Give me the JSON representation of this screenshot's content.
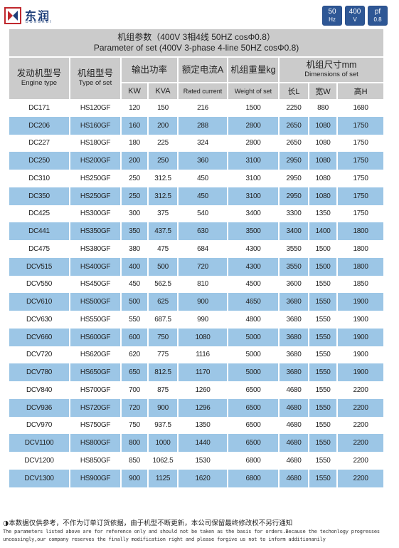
{
  "brand": {
    "name": "东润",
    "subtitle": "DONGRUI"
  },
  "badges": [
    {
      "top": "50",
      "bottom": "Hz"
    },
    {
      "top": "400",
      "bottom": "V"
    },
    {
      "top": "pf",
      "bottom": "0.8"
    }
  ],
  "table": {
    "title_cn": "机组参数（400V 3相4线 50HZ cosΦ0.8）",
    "title_en": "Parameter of set (400V 3-phase 4-line 50HZ cosΦ0.8)",
    "headers": {
      "engine_cn": "发动机型号",
      "engine_en": "Engine type",
      "set_cn": "机组型号",
      "set_en": "Type of set",
      "power": "输出功率",
      "kw": "KW",
      "kva": "KVA",
      "current_cn": "额定电流A",
      "current_en": "Rated current",
      "weight_cn": "机组重量kg",
      "weight_en": "Weight of set",
      "dim_cn": "机组尺寸mm",
      "dim_en": "Dimensions of set",
      "l": "长L",
      "w": "宽W",
      "h": "高H"
    },
    "rows": [
      [
        "DC171",
        "HS120GF",
        "120",
        "150",
        "216",
        "1500",
        "2250",
        "880",
        "1680"
      ],
      [
        "DC206",
        "HS160GF",
        "160",
        "200",
        "288",
        "2800",
        "2650",
        "1080",
        "1750"
      ],
      [
        "DC227",
        "HS180GF",
        "180",
        "225",
        "324",
        "2800",
        "2650",
        "1080",
        "1750"
      ],
      [
        "DC250",
        "HS200GF",
        "200",
        "250",
        "360",
        "3100",
        "2950",
        "1080",
        "1750"
      ],
      [
        "DC310",
        "HS250GF",
        "250",
        "312.5",
        "450",
        "3100",
        "2950",
        "1080",
        "1750"
      ],
      [
        "DC350",
        "HS250GF",
        "250",
        "312.5",
        "450",
        "3100",
        "2950",
        "1080",
        "1750"
      ],
      [
        "DC425",
        "HS300GF",
        "300",
        "375",
        "540",
        "3400",
        "3300",
        "1350",
        "1750"
      ],
      [
        "DC441",
        "HS350GF",
        "350",
        "437.5",
        "630",
        "3500",
        "3400",
        "1400",
        "1800"
      ],
      [
        "DC475",
        "HS380GF",
        "380",
        "475",
        "684",
        "4300",
        "3550",
        "1500",
        "1800"
      ],
      [
        "DCV515",
        "HS400GF",
        "400",
        "500",
        "720",
        "4300",
        "3550",
        "1500",
        "1800"
      ],
      [
        "DCV550",
        "HS450GF",
        "450",
        "562.5",
        "810",
        "4500",
        "3600",
        "1550",
        "1850"
      ],
      [
        "DCV610",
        "HS500GF",
        "500",
        "625",
        "900",
        "4650",
        "3680",
        "1550",
        "1900"
      ],
      [
        "DCV630",
        "HS550GF",
        "550",
        "687.5",
        "990",
        "4800",
        "3680",
        "1550",
        "1900"
      ],
      [
        "DCV660",
        "HS600GF",
        "600",
        "750",
        "1080",
        "5000",
        "3680",
        "1550",
        "1900"
      ],
      [
        "DCV720",
        "HS620GF",
        "620",
        "775",
        "1116",
        "5000",
        "3680",
        "1550",
        "1900"
      ],
      [
        "DCV780",
        "HS650GF",
        "650",
        "812.5",
        "1170",
        "5000",
        "3680",
        "1550",
        "1900"
      ],
      [
        "DCV840",
        "HS700GF",
        "700",
        "875",
        "1260",
        "6500",
        "4680",
        "1550",
        "2200"
      ],
      [
        "DCV936",
        "HS720GF",
        "720",
        "900",
        "1296",
        "6500",
        "4680",
        "1550",
        "2200"
      ],
      [
        "DCV970",
        "HS750GF",
        "750",
        "937.5",
        "1350",
        "6500",
        "4680",
        "1550",
        "2200"
      ],
      [
        "DCV1100",
        "HS800GF",
        "800",
        "1000",
        "1440",
        "6500",
        "4680",
        "1550",
        "2200"
      ],
      [
        "DCV1200",
        "HS850GF",
        "850",
        "1062.5",
        "1530",
        "6800",
        "4680",
        "1550",
        "2200"
      ],
      [
        "DCV1300",
        "HS900GF",
        "900",
        "1125",
        "1620",
        "6800",
        "4680",
        "1550",
        "2200"
      ]
    ]
  },
  "footer": {
    "cn": "◑本数据仅供参考，不作为订单订货依据，由于机型不断更新，本公司保留最终修改权不另行通知",
    "en_line1": "The parameters listed above are for reference only and should not be taken as the basis for orders.Because the techonlogy progresses",
    "en_line2": "unceasingly,our company reserves the finally modification right and please forgive us not to inform additionanily"
  },
  "colors": {
    "header_gray": "#cbcbcb",
    "row_blue": "#9cc6e6",
    "brand_blue": "#2e5795"
  }
}
